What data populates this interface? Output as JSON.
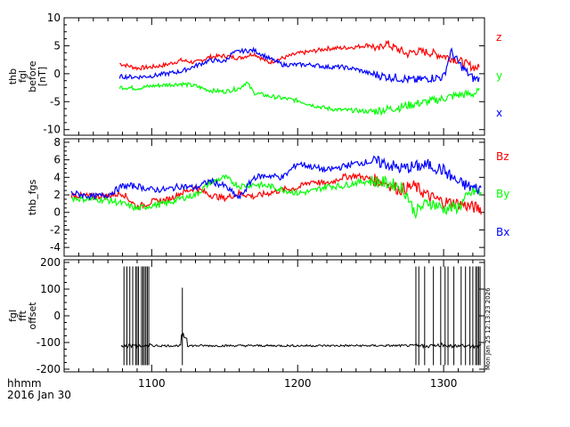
{
  "chart_data": [
    {
      "type": "line",
      "ylabel": [
        "thb",
        "fgl",
        "before",
        "[nT]"
      ],
      "ylim": [
        -11,
        10
      ],
      "yticks": [
        10,
        5,
        0,
        -5,
        -10
      ],
      "xlim": [
        1040,
        1328
      ],
      "series": [
        {
          "name": "z",
          "color": "#ff0000",
          "x": [
            1078,
            1090,
            1100,
            1110,
            1120,
            1130,
            1140,
            1150,
            1160,
            1170,
            1180,
            1190,
            1200,
            1210,
            1220,
            1230,
            1240,
            1250,
            1255,
            1260,
            1265,
            1270,
            1275,
            1280,
            1290,
            1300,
            1310,
            1320,
            1325
          ],
          "values": [
            1.8,
            1.0,
            1.2,
            1.6,
            2.4,
            2.0,
            3.0,
            3.2,
            2.8,
            3.6,
            2.0,
            2.8,
            3.6,
            4.0,
            4.5,
            4.6,
            4.8,
            5.2,
            4.2,
            5.5,
            4.8,
            4.2,
            3.5,
            4.0,
            3.8,
            3.2,
            2.4,
            1.2,
            1.0
          ]
        },
        {
          "name": "y",
          "color": "#00ff00",
          "x": [
            1078,
            1090,
            1100,
            1110,
            1120,
            1130,
            1140,
            1150,
            1160,
            1165,
            1170,
            1180,
            1190,
            1200,
            1210,
            1220,
            1230,
            1240,
            1250,
            1260,
            1270,
            1280,
            1290,
            1300,
            1310,
            1320,
            1325
          ],
          "values": [
            -2.4,
            -2.6,
            -2.2,
            -2.0,
            -1.8,
            -2.2,
            -3.0,
            -3.2,
            -2.6,
            -1.5,
            -3.4,
            -4.0,
            -4.4,
            -4.8,
            -5.6,
            -6.2,
            -6.5,
            -6.6,
            -6.8,
            -6.4,
            -6.0,
            -5.4,
            -5.0,
            -4.4,
            -3.8,
            -3.6,
            -3.2
          ]
        },
        {
          "name": "x",
          "color": "#0000ff",
          "x": [
            1078,
            1090,
            1100,
            1110,
            1120,
            1130,
            1140,
            1150,
            1155,
            1160,
            1170,
            1180,
            1190,
            1200,
            1210,
            1220,
            1230,
            1240,
            1250,
            1260,
            1270,
            1280,
            1290,
            1300,
            1305,
            1310,
            1315,
            1320,
            1325
          ],
          "values": [
            -0.5,
            -0.6,
            -0.4,
            0.0,
            0.4,
            1.4,
            2.4,
            2.2,
            3.6,
            4.0,
            4.2,
            2.8,
            1.6,
            1.6,
            1.6,
            1.2,
            1.2,
            0.8,
            0.0,
            -0.5,
            -0.8,
            -1.2,
            -0.8,
            -0.6,
            4.0,
            2.0,
            0.5,
            -0.8,
            -1.0
          ]
        }
      ]
    },
    {
      "type": "line",
      "ylabel": [
        "thb_fgs"
      ],
      "ylim": [
        -5,
        8.4
      ],
      "yticks": [
        8,
        6,
        4,
        2,
        0,
        -2,
        -4
      ],
      "xlim": [
        1040,
        1328
      ],
      "series": [
        {
          "name": "Bz",
          "color": "#ff0000",
          "x": [
            1045,
            1060,
            1070,
            1080,
            1090,
            1100,
            1110,
            1120,
            1130,
            1140,
            1150,
            1160,
            1170,
            1180,
            1190,
            1200,
            1210,
            1220,
            1230,
            1240,
            1250,
            1260,
            1270,
            1280,
            1290,
            1300,
            1310,
            1320,
            1326
          ],
          "values": [
            2.0,
            1.8,
            1.9,
            2.2,
            0.6,
            1.2,
            1.4,
            2.2,
            2.8,
            2.0,
            1.6,
            2.2,
            1.8,
            2.2,
            2.6,
            2.8,
            3.6,
            3.2,
            4.0,
            4.2,
            3.8,
            3.4,
            2.6,
            3.0,
            1.8,
            1.2,
            1.0,
            0.6,
            0.4
          ]
        },
        {
          "name": "By",
          "color": "#00ff00",
          "x": [
            1045,
            1060,
            1070,
            1080,
            1090,
            1100,
            1110,
            1120,
            1130,
            1140,
            1150,
            1160,
            1170,
            1180,
            1190,
            1200,
            1210,
            1220,
            1230,
            1240,
            1250,
            1260,
            1270,
            1275,
            1280,
            1290,
            1300,
            1310,
            1320,
            1326
          ],
          "values": [
            1.6,
            1.5,
            1.4,
            1.0,
            0.4,
            0.8,
            1.0,
            1.6,
            2.0,
            3.4,
            4.0,
            3.0,
            3.2,
            3.0,
            2.6,
            2.2,
            2.4,
            3.0,
            3.0,
            3.4,
            3.6,
            3.4,
            3.0,
            2.0,
            0.0,
            1.2,
            0.4,
            0.6,
            2.4,
            2.2
          ]
        },
        {
          "name": "Bx",
          "color": "#0000ff",
          "x": [
            1045,
            1060,
            1070,
            1080,
            1090,
            1100,
            1110,
            1120,
            1130,
            1140,
            1150,
            1160,
            1170,
            1180,
            1190,
            1200,
            1210,
            1220,
            1230,
            1240,
            1250,
            1260,
            1270,
            1280,
            1290,
            1300,
            1310,
            1320,
            1326
          ],
          "values": [
            2.2,
            1.8,
            2.0,
            3.0,
            3.0,
            2.6,
            2.6,
            3.0,
            2.8,
            3.6,
            3.0,
            1.6,
            4.0,
            4.2,
            4.0,
            5.6,
            5.2,
            4.8,
            5.2,
            5.6,
            5.8,
            5.6,
            5.0,
            5.2,
            5.4,
            4.8,
            3.4,
            2.8,
            2.6
          ]
        }
      ]
    },
    {
      "type": "line",
      "ylabel": [
        "fgl",
        "fft",
        "offset"
      ],
      "ylim": [
        -210,
        210
      ],
      "yticks": [
        200,
        100,
        0,
        -100,
        -200
      ],
      "xlim": [
        1040,
        1328
      ],
      "baseline": -112,
      "series": [
        {
          "name": "",
          "color": "#000000"
        }
      ],
      "spikes_x": [
        1081,
        1083,
        1085,
        1087,
        1089,
        1090,
        1091,
        1093,
        1094,
        1095,
        1096,
        1097,
        1098,
        1121,
        1281,
        1283,
        1287,
        1293,
        1298,
        1301,
        1303,
        1307,
        1312,
        1315,
        1318,
        1320,
        1322,
        1323,
        1324,
        1325
      ]
    }
  ],
  "x_ticks": [
    1100,
    1200,
    1300
  ],
  "footer": {
    "line1": "hhmm",
    "line2": "2016 Jan 30"
  },
  "timestamp": "Mon Jan 25 12:13:23 2026"
}
